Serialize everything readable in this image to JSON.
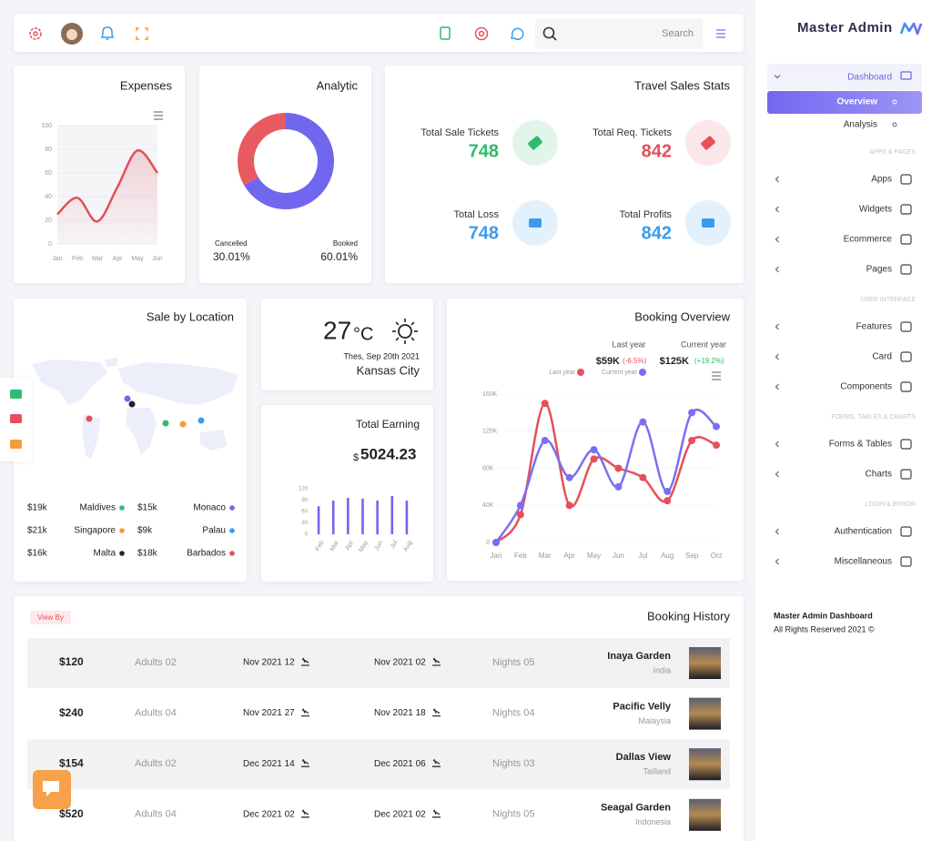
{
  "header": {
    "search": "Search"
  },
  "sidebar": {
    "brand": "Master Admin",
    "dashboard": {
      "label": "Dashboard",
      "children": [
        "Overview",
        "Analysis"
      ]
    },
    "sections": [
      {
        "heading": "APPS & PAGES",
        "items": [
          "Apps",
          "Widgets",
          "Ecommerce",
          "Pages"
        ]
      },
      {
        "heading": "USER INTERFACE",
        "items": [
          "Features",
          "Card",
          "Components"
        ]
      },
      {
        "heading": "FORMS, TABLES & CHARTS",
        "items": [
          "Forms & Tables",
          "Charts"
        ]
      },
      {
        "heading": "LOGIN & ERROR",
        "items": [
          "Authentication",
          "Miscellaneous"
        ]
      }
    ],
    "footer": {
      "title": "Master Admin Dashboard",
      "copyright": "All Rights Reserved 2021 ©"
    }
  },
  "expenses": {
    "type": "line",
    "title": "Expenses",
    "categories": [
      "Jan",
      "Feb",
      "Mar",
      "Apr",
      "May",
      "Jun"
    ],
    "values": [
      25,
      39,
      19,
      48,
      79,
      60
    ],
    "color": "#e0505a",
    "ylim": [
      0,
      100
    ],
    "yticks": [
      0,
      20,
      40,
      60,
      80,
      100
    ],
    "grid": true
  },
  "analytic": {
    "type": "donut",
    "title": "Analytic",
    "categories": [
      "Cancelled",
      "Booked"
    ],
    "values": [
      30.01,
      60.01
    ],
    "value_labels": [
      "30.01%",
      "60.01%"
    ],
    "colors": [
      "#e85a5f",
      "#7166ee"
    ]
  },
  "travel": {
    "title": "Travel Sales Stats",
    "stats": [
      {
        "label": "Total Sale Tickets",
        "value": 748,
        "color": "#2dbb6e"
      },
      {
        "label": "Total Req. Tickets",
        "value": 842,
        "color": "#e5505a"
      },
      {
        "label": "Total Loss",
        "value": 748,
        "color": "#3a9bed"
      },
      {
        "label": "Total Profits",
        "value": 842,
        "color": "#3a9bed"
      }
    ]
  },
  "location": {
    "title": "Sale by Location",
    "items": [
      {
        "value": "$19k",
        "name": "Maldives",
        "color": "#2dbb6e"
      },
      {
        "value": "$15k",
        "name": "Monaco",
        "color": "#7166ee"
      },
      {
        "value": "$21k",
        "name": "Singapore",
        "color": "#f79a3b"
      },
      {
        "value": "$9k",
        "name": "Palau",
        "color": "#3a9bed"
      },
      {
        "value": "$16k",
        "name": "Malta",
        "color": "#222233"
      },
      {
        "value": "$18k",
        "name": "Barbados",
        "color": "#e5505a"
      }
    ]
  },
  "weather": {
    "temperature": "27",
    "unit": "°C",
    "date": "Thes, Sep 20th 2021",
    "city": "Kansas City"
  },
  "earning": {
    "type": "bar",
    "title": "Total Earning",
    "currency": "$",
    "amount": "5024.23",
    "categories": [
      "Feb",
      "Mar",
      "Apr",
      "May",
      "Jun",
      "Jul",
      "Aug"
    ],
    "values": [
      74,
      89,
      96,
      94,
      89,
      101,
      89
    ],
    "color": "#7166ee",
    "ylim": [
      0,
      120
    ],
    "yticks": [
      0,
      30,
      60,
      90,
      120
    ]
  },
  "booking_overview": {
    "type": "line",
    "title": "Booking Overview",
    "summary": [
      {
        "label": "Last year",
        "value": "$59K",
        "change": "(-6.5%)",
        "change_color": "#e5505a"
      },
      {
        "label": "Current year",
        "value": "$125K",
        "change": "(+19.2%)",
        "change_color": "#2dbb6e"
      }
    ],
    "categories": [
      "Jan",
      "Feb",
      "Mar",
      "Apr",
      "May",
      "Jun",
      "Jul",
      "Aug",
      "Sep",
      "Oct"
    ],
    "series": [
      {
        "name": "Last year",
        "color": "#e5505a",
        "values": [
          0,
          30000,
          150000,
          40000,
          90000,
          80000,
          70000,
          45000,
          110000,
          105000
        ]
      },
      {
        "name": "Current year",
        "color": "#7a6ff0",
        "values": [
          0,
          40000,
          110000,
          70000,
          100000,
          60000,
          130000,
          55000,
          140000,
          125000
        ]
      }
    ],
    "ylim": [
      0,
      160000
    ],
    "yticks": [
      0,
      {
        "value": 40000,
        "label": "40K"
      },
      {
        "value": 80000,
        "label": "80K"
      },
      {
        "value": 120000,
        "label": "120K"
      },
      {
        "value": 160000,
        "label": "160K"
      }
    ]
  },
  "history": {
    "title": "Booking History",
    "filter": "View By",
    "rows": [
      {
        "price": "$120",
        "guests": "Adults 02",
        "check_in": "Nov 2021 12",
        "check_out": "Nov 2021 02",
        "nights": "Nights 05",
        "hotel": "Inaya Garden",
        "country": "India"
      },
      {
        "price": "$240",
        "guests": "Adults 04",
        "check_in": "Nov 2021 27",
        "check_out": "Nov 2021 18",
        "nights": "Nights 04",
        "hotel": "Pacific Velly",
        "country": "Malaysia"
      },
      {
        "price": "$154",
        "guests": "Adults 02",
        "check_in": "Dec 2021 14",
        "check_out": "Dec 2021 06",
        "nights": "Nights 03",
        "hotel": "Dallas View",
        "country": "Tailland"
      },
      {
        "price": "$520",
        "guests": "Adults 04",
        "check_in": "Dec 2021 02",
        "check_out": "Dec 2021 02",
        "nights": "Nights 05",
        "hotel": "Seagal Garden",
        "country": "Indonesia"
      }
    ]
  }
}
